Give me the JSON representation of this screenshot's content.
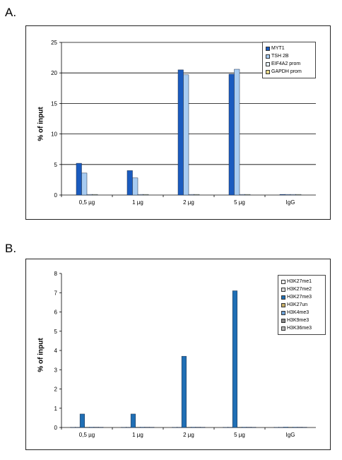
{
  "panels": [
    {
      "label": "A."
    },
    {
      "label": "B."
    }
  ],
  "chart_data": [
    {
      "type": "bar",
      "ylabel": "% of input",
      "xlabel": "",
      "title": "",
      "ylim": [
        0,
        25
      ],
      "yticks": [
        0,
        5,
        10,
        15,
        20,
        25
      ],
      "grid": true,
      "legend_position": "top-right",
      "categories": [
        "0,5 µg",
        "1 µg",
        "2 µg",
        "5 µg",
        "IgG"
      ],
      "series": [
        {
          "name": "MYT1",
          "color": "#1a5bbf",
          "values": [
            5.2,
            4.0,
            20.5,
            19.8,
            0.1
          ]
        },
        {
          "name": "TSH 2B",
          "color": "#a8ccf2",
          "values": [
            3.6,
            2.8,
            19.7,
            20.6,
            0.1
          ]
        },
        {
          "name": "EIF4A2 prom",
          "color": "#e6f2fc",
          "values": [
            0.1,
            0.1,
            0.1,
            0.1,
            0.1
          ]
        },
        {
          "name": "GAPDH prom",
          "color": "#e8d98a",
          "values": [
            0.1,
            0.1,
            0.1,
            0.1,
            0.1
          ]
        }
      ]
    },
    {
      "type": "bar",
      "ylabel": "% of input",
      "xlabel": "",
      "title": "",
      "ylim": [
        0,
        8
      ],
      "yticks": [
        0,
        1,
        2,
        3,
        4,
        5,
        6,
        7,
        8
      ],
      "grid": false,
      "legend_position": "top-right",
      "categories": [
        "0,5 µg",
        "1 µg",
        "2 µg",
        "5 µg",
        "IgG"
      ],
      "series": [
        {
          "name": "H3K27me1",
          "color": "#f2f2f2",
          "values": [
            0.02,
            0.02,
            0.02,
            0.02,
            0.02
          ]
        },
        {
          "name": "H3K27me2",
          "color": "#d9d9d9",
          "values": [
            0.02,
            0.02,
            0.02,
            0.02,
            0.02
          ]
        },
        {
          "name": "H3K27me3",
          "color": "#1f6fb5",
          "values": [
            0.7,
            0.7,
            3.7,
            7.1,
            0.02
          ]
        },
        {
          "name": "H3K27un",
          "color": "#c8b06a",
          "values": [
            0.02,
            0.02,
            0.02,
            0.02,
            0.02
          ]
        },
        {
          "name": "H3K4me3",
          "color": "#6fa3d8",
          "values": [
            0.02,
            0.02,
            0.02,
            0.02,
            0.02
          ]
        },
        {
          "name": "H3K9me3",
          "color": "#8a8a8a",
          "values": [
            0.02,
            0.02,
            0.02,
            0.02,
            0.02
          ]
        },
        {
          "name": "H3K36me3",
          "color": "#b5b5b5",
          "values": [
            0.02,
            0.02,
            0.02,
            0.02,
            0.02
          ]
        }
      ]
    }
  ]
}
